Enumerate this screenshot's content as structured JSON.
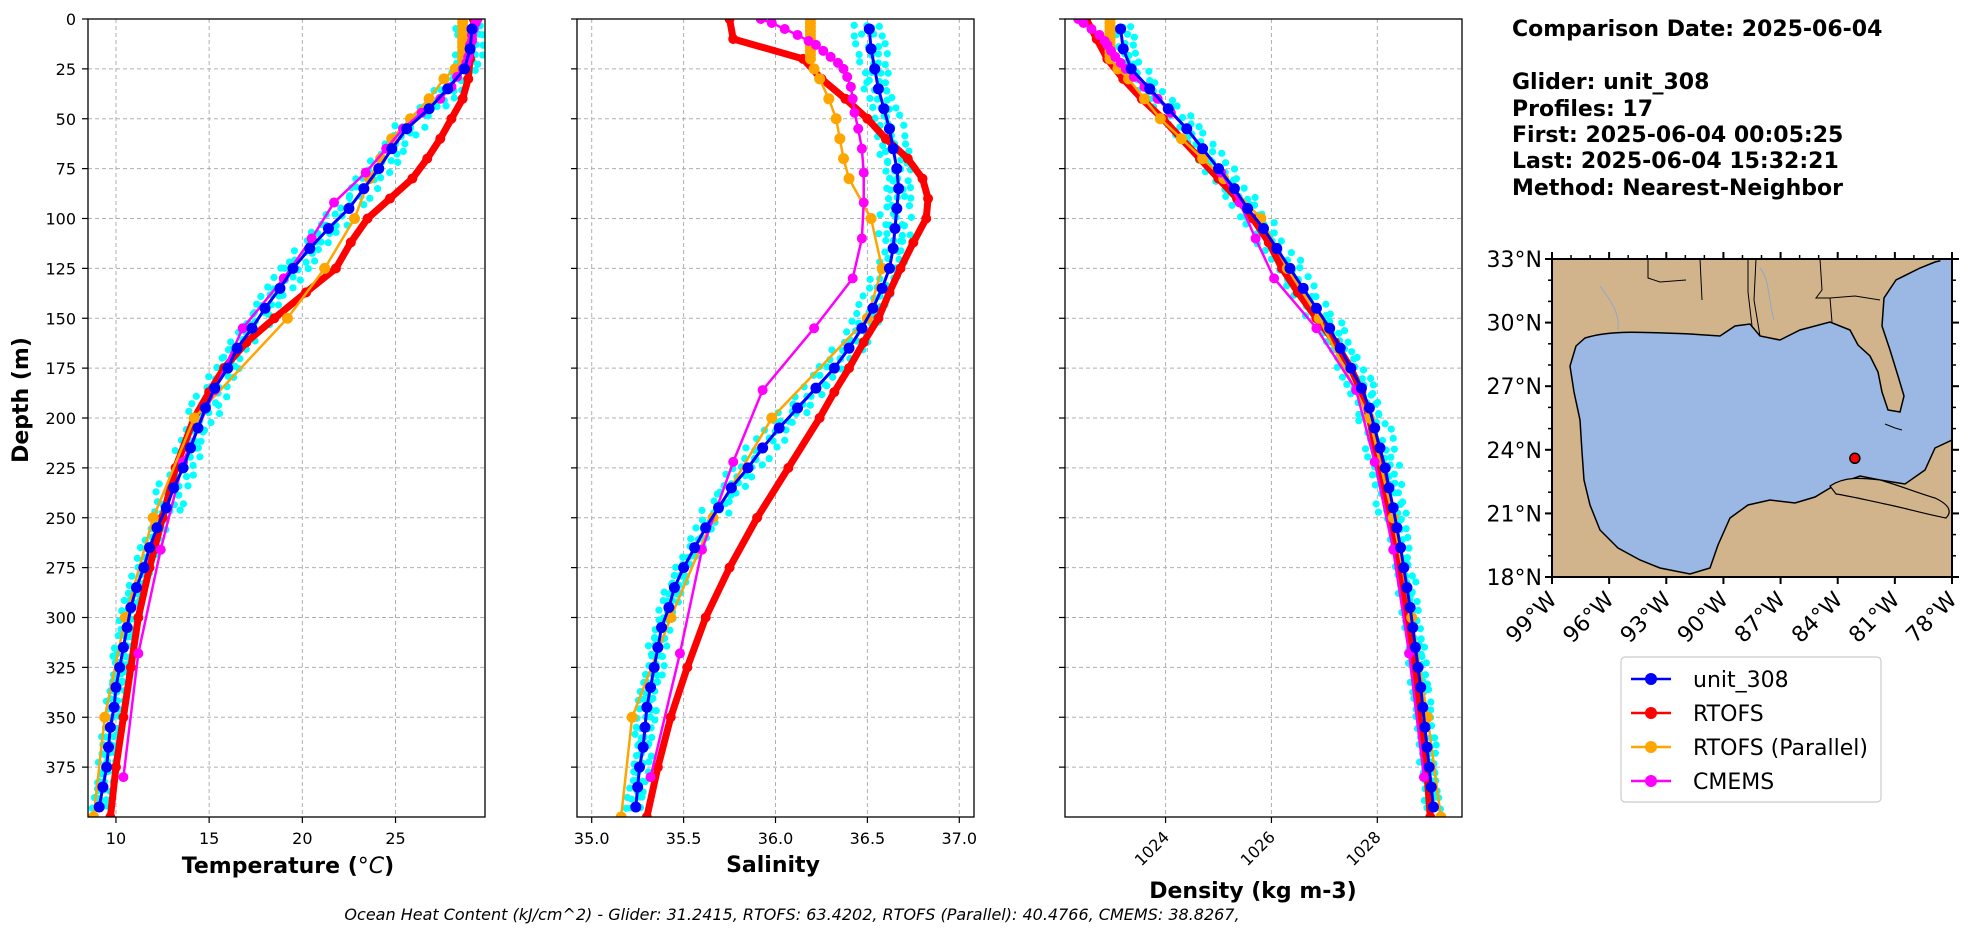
{
  "info": {
    "comparison_date": "Comparison Date: 2025-06-04",
    "glider": "Glider: unit_308",
    "profiles": "Profiles: 17",
    "first": "First: 2025-06-04 00:05:25",
    "last": "Last: 2025-06-04 15:32:21",
    "method": "Method: Nearest-Neighbor"
  },
  "footer": "Ocean Heat Content (kJ/cm^2) - Glider: 31.2415,  RTOFS: 63.4202,  RTOFS (Parallel): 40.4766,  CMEMS: 38.8267,",
  "colors": {
    "unit_308": "#0000ff",
    "RTOFS": "#ff0000",
    "RTOFS (Parallel)": "#ffa500",
    "CMEMS": "#ff00ff",
    "glider_profiles": "#00ffff",
    "land": "#d2b48c",
    "ocean": "#9ab8e3",
    "grid": "#b0b0b0"
  },
  "map": {
    "lat_labels": [
      "33°N",
      "30°N",
      "27°N",
      "24°N",
      "21°N",
      "18°N"
    ],
    "lat_values": [
      33,
      30,
      27,
      24,
      21,
      18
    ],
    "lon_labels": [
      "99°W",
      "96°W",
      "93°W",
      "90°W",
      "87°W",
      "84°W",
      "81°W",
      "78°W"
    ],
    "lon_values": [
      -99,
      -96,
      -93,
      -90,
      -87,
      -84,
      -81,
      -78
    ],
    "glider_position": {
      "lon": -83.1,
      "lat": 23.6
    }
  },
  "legend": [
    "unit_308",
    "RTOFS",
    "RTOFS (Parallel)",
    "CMEMS"
  ],
  "chart_data": [
    {
      "type": "line",
      "name": "temperature",
      "xlabel": "Temperature (°C)",
      "ylabel": "Depth (m)",
      "xlim": [
        8.5,
        29.8
      ],
      "ylim": [
        400,
        0
      ],
      "xticks": [
        10,
        15,
        20,
        25
      ],
      "yticks": [
        0,
        25,
        50,
        75,
        100,
        125,
        150,
        175,
        200,
        225,
        250,
        275,
        300,
        325,
        350,
        375
      ],
      "grid": true,
      "series": [
        {
          "name": "unit_308",
          "depth": [
            5,
            15,
            25,
            35,
            45,
            55,
            65,
            75,
            85,
            95,
            105,
            115,
            125,
            135,
            145,
            155,
            165,
            175,
            185,
            195,
            205,
            215,
            225,
            235,
            245,
            255,
            265,
            275,
            285,
            295,
            305,
            315,
            325,
            335,
            345,
            355,
            365,
            375,
            385,
            395
          ],
          "values": [
            29.1,
            29.0,
            28.7,
            27.8,
            26.8,
            25.6,
            24.8,
            24.1,
            23.3,
            22.5,
            21.4,
            20.4,
            19.5,
            18.8,
            18.0,
            17.3,
            16.5,
            16.0,
            15.3,
            14.8,
            14.4,
            14.0,
            13.6,
            13.1,
            12.7,
            12.2,
            11.8,
            11.5,
            11.1,
            10.8,
            10.6,
            10.4,
            10.2,
            10.0,
            9.9,
            9.7,
            9.6,
            9.5,
            9.3,
            9.1
          ]
        },
        {
          "name": "RTOFS",
          "depth": [
            0,
            10,
            20,
            30,
            40,
            50,
            60,
            70,
            80,
            90,
            100,
            112,
            125,
            137,
            150,
            162,
            175,
            187,
            200,
            225,
            250,
            275,
            300,
            325,
            350,
            375,
            400
          ],
          "values": [
            29.2,
            29.1,
            29.0,
            28.9,
            28.6,
            28.0,
            27.4,
            26.7,
            25.9,
            24.7,
            23.5,
            22.6,
            21.8,
            20.2,
            18.5,
            17.0,
            15.8,
            15.0,
            14.2,
            13.2,
            12.5,
            11.8,
            11.2,
            10.8,
            10.4,
            10.0,
            9.7
          ]
        },
        {
          "name": "RTOFS (Parallel)",
          "depth": [
            0,
            2,
            4,
            6,
            8,
            10,
            12,
            14,
            16,
            18,
            20,
            25,
            30,
            40,
            50,
            60,
            70,
            80,
            100,
            125,
            150,
            200,
            250,
            300,
            350,
            400
          ],
          "values": [
            28.6,
            28.6,
            28.6,
            28.6,
            28.6,
            28.6,
            28.6,
            28.6,
            28.6,
            28.6,
            28.6,
            28.2,
            27.6,
            26.8,
            25.8,
            24.8,
            24.2,
            23.6,
            22.8,
            21.2,
            19.2,
            14.2,
            12.0,
            10.5,
            9.4,
            8.8
          ]
        },
        {
          "name": "CMEMS",
          "depth": [
            0,
            2,
            5,
            8,
            11,
            13,
            16,
            19,
            22,
            25,
            29,
            34,
            40,
            47,
            55,
            65,
            77,
            92,
            110,
            130,
            155,
            186,
            222,
            266,
            318,
            380
          ],
          "values": [
            29.4,
            29.3,
            29.2,
            29.1,
            29.1,
            29.0,
            29.0,
            28.9,
            28.8,
            28.6,
            28.3,
            28.0,
            27.4,
            26.4,
            25.4,
            24.5,
            23.4,
            21.7,
            20.5,
            19.0,
            16.8,
            15.3,
            13.6,
            12.4,
            11.2,
            10.4
          ]
        }
      ]
    },
    {
      "type": "line",
      "name": "salinity",
      "xlabel": "Salinity",
      "ylim": [
        400,
        0
      ],
      "xlim": [
        34.92,
        37.08
      ],
      "xticks": [
        35.0,
        35.5,
        36.0,
        36.5,
        37.0
      ],
      "grid": true,
      "series": [
        {
          "name": "unit_308",
          "depth": [
            5,
            15,
            25,
            35,
            45,
            55,
            65,
            75,
            85,
            95,
            105,
            115,
            125,
            135,
            145,
            155,
            165,
            175,
            185,
            195,
            205,
            215,
            225,
            235,
            245,
            255,
            265,
            275,
            285,
            295,
            305,
            315,
            325,
            335,
            345,
            355,
            365,
            375,
            385,
            395
          ],
          "values": [
            36.51,
            36.52,
            36.54,
            36.56,
            36.59,
            36.62,
            36.64,
            36.66,
            36.67,
            36.66,
            36.65,
            36.64,
            36.62,
            36.58,
            36.53,
            36.47,
            36.4,
            36.32,
            36.22,
            36.12,
            36.02,
            35.93,
            35.85,
            35.76,
            35.69,
            35.62,
            35.56,
            35.5,
            35.45,
            35.42,
            35.38,
            35.36,
            35.34,
            35.32,
            35.3,
            35.29,
            35.28,
            35.26,
            35.25,
            35.24
          ]
        },
        {
          "name": "RTOFS",
          "depth": [
            0,
            10,
            20,
            30,
            40,
            50,
            60,
            70,
            80,
            90,
            100,
            112,
            125,
            137,
            150,
            162,
            175,
            187,
            200,
            225,
            250,
            275,
            300,
            325,
            350,
            375,
            400
          ],
          "values": [
            35.75,
            35.77,
            36.15,
            36.25,
            36.38,
            36.5,
            36.6,
            36.72,
            36.8,
            36.83,
            36.82,
            36.75,
            36.68,
            36.62,
            36.56,
            36.48,
            36.4,
            36.32,
            36.24,
            36.07,
            35.9,
            35.75,
            35.62,
            35.52,
            35.43,
            35.36,
            35.3
          ]
        },
        {
          "name": "RTOFS (Parallel)",
          "depth": [
            0,
            2,
            4,
            6,
            8,
            10,
            12,
            14,
            16,
            18,
            20,
            25,
            30,
            40,
            50,
            60,
            70,
            80,
            100,
            125,
            150,
            200,
            250,
            300,
            350,
            400
          ],
          "values": [
            36.19,
            36.19,
            36.19,
            36.19,
            36.19,
            36.19,
            36.19,
            36.19,
            36.19,
            36.19,
            36.19,
            36.21,
            36.24,
            36.29,
            36.33,
            36.35,
            36.37,
            36.4,
            36.52,
            36.58,
            36.5,
            35.98,
            35.66,
            35.43,
            35.22,
            35.16
          ]
        },
        {
          "name": "CMEMS",
          "depth": [
            0,
            2,
            5,
            8,
            11,
            13,
            16,
            19,
            22,
            25,
            29,
            34,
            40,
            47,
            55,
            65,
            77,
            92,
            110,
            130,
            155,
            186,
            222,
            266,
            318,
            380
          ],
          "values": [
            35.92,
            35.98,
            36.05,
            36.12,
            36.18,
            36.22,
            36.26,
            36.3,
            36.34,
            36.37,
            36.39,
            36.41,
            36.42,
            36.43,
            36.45,
            36.47,
            36.48,
            36.48,
            36.47,
            36.42,
            36.21,
            35.93,
            35.77,
            35.6,
            35.48,
            35.32
          ]
        }
      ]
    },
    {
      "type": "line",
      "name": "density",
      "xlabel": "Density (kg m-3)",
      "ylim": [
        400,
        0
      ],
      "xlim": [
        1022.1,
        1029.6
      ],
      "xticks": [
        1024,
        1026,
        1028
      ],
      "grid": true,
      "series": [
        {
          "name": "unit_308",
          "depth": [
            5,
            15,
            25,
            35,
            45,
            55,
            65,
            75,
            85,
            95,
            105,
            115,
            125,
            135,
            145,
            155,
            165,
            175,
            185,
            195,
            205,
            215,
            225,
            235,
            245,
            255,
            265,
            275,
            285,
            295,
            305,
            315,
            325,
            335,
            345,
            355,
            365,
            375,
            385,
            395
          ],
          "values": [
            1023.15,
            1023.2,
            1023.35,
            1023.7,
            1024.05,
            1024.4,
            1024.7,
            1025.0,
            1025.3,
            1025.55,
            1025.85,
            1026.1,
            1026.35,
            1026.6,
            1026.85,
            1027.1,
            1027.3,
            1027.5,
            1027.7,
            1027.85,
            1027.95,
            1028.05,
            1028.15,
            1028.22,
            1028.3,
            1028.37,
            1028.44,
            1028.5,
            1028.56,
            1028.62,
            1028.67,
            1028.72,
            1028.77,
            1028.82,
            1028.86,
            1028.9,
            1028.94,
            1028.98,
            1029.02,
            1029.06
          ]
        },
        {
          "name": "RTOFS",
          "depth": [
            0,
            10,
            20,
            30,
            40,
            50,
            60,
            70,
            80,
            90,
            100,
            112,
            125,
            137,
            150,
            162,
            175,
            187,
            200,
            225,
            250,
            275,
            300,
            325,
            350,
            375,
            400
          ],
          "values": [
            1022.5,
            1022.7,
            1022.9,
            1023.2,
            1023.55,
            1023.95,
            1024.3,
            1024.65,
            1025.0,
            1025.35,
            1025.65,
            1025.95,
            1026.2,
            1026.5,
            1026.85,
            1027.2,
            1027.5,
            1027.7,
            1027.85,
            1028.05,
            1028.25,
            1028.42,
            1028.57,
            1028.7,
            1028.82,
            1028.93,
            1029.0
          ]
        },
        {
          "name": "RTOFS (Parallel)",
          "depth": [
            0,
            2,
            4,
            6,
            8,
            10,
            12,
            14,
            16,
            18,
            20,
            25,
            30,
            40,
            50,
            60,
            70,
            80,
            100,
            125,
            150,
            200,
            250,
            300,
            350,
            400
          ],
          "values": [
            1022.95,
            1022.95,
            1022.95,
            1022.95,
            1022.95,
            1022.95,
            1022.95,
            1022.95,
            1022.95,
            1022.95,
            1022.95,
            1023.1,
            1023.3,
            1023.6,
            1023.9,
            1024.3,
            1024.7,
            1025.1,
            1025.8,
            1026.3,
            1026.9,
            1027.85,
            1028.3,
            1028.65,
            1028.95,
            1029.2
          ]
        },
        {
          "name": "CMEMS",
          "depth": [
            0,
            2,
            5,
            8,
            11,
            13,
            16,
            19,
            22,
            25,
            29,
            34,
            40,
            47,
            55,
            65,
            77,
            92,
            110,
            130,
            155,
            186,
            222,
            266,
            318,
            380
          ],
          "values": [
            1022.35,
            1022.45,
            1022.6,
            1022.75,
            1022.85,
            1022.9,
            1022.97,
            1023.05,
            1023.15,
            1023.25,
            1023.4,
            1023.6,
            1023.85,
            1024.1,
            1024.4,
            1024.7,
            1025.05,
            1025.4,
            1025.7,
            1026.05,
            1026.85,
            1027.6,
            1027.95,
            1028.3,
            1028.6,
            1028.88
          ]
        }
      ]
    }
  ]
}
